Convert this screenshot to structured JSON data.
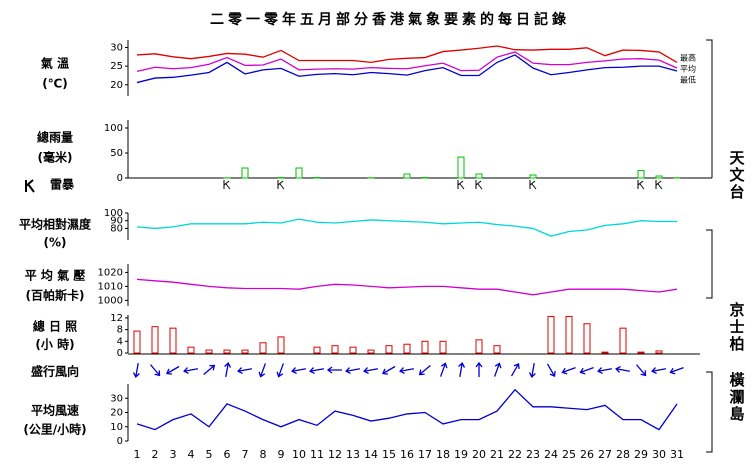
{
  "title": "二零一零年五月部分香港氣象要素的每日記錄",
  "days": [
    1,
    2,
    3,
    4,
    5,
    6,
    7,
    8,
    9,
    10,
    11,
    12,
    13,
    14,
    15,
    16,
    17,
    18,
    19,
    20,
    21,
    22,
    23,
    24,
    25,
    26,
    27,
    28,
    29,
    30,
    31
  ],
  "stations": [
    "天文台",
    "京士柏",
    "橫瀾島"
  ],
  "chart_data": [
    {
      "type": "line",
      "label": [
        "氣 溫",
        "(℃)"
      ],
      "ylim": [
        17,
        32
      ],
      "yticks": [
        20,
        25,
        30
      ],
      "series": [
        {
          "name": "最高",
          "color": "#e00000",
          "values": [
            28,
            28.3,
            27.5,
            27,
            27.6,
            28.4,
            28.2,
            27.4,
            29.2,
            26.5,
            26.5,
            26.5,
            26.5,
            26,
            26.8,
            27.1,
            27.3,
            28.9,
            29.3,
            29.8,
            30.4,
            29.4,
            29.3,
            29.5,
            29.5,
            29.9,
            27.8,
            29.3,
            29.2,
            28.8,
            26
          ]
        },
        {
          "name": "平均",
          "color": "#d000d0",
          "values": [
            23.6,
            24.7,
            24.3,
            24.6,
            25.5,
            27.3,
            25.2,
            25.3,
            26.9,
            24,
            24.2,
            24.3,
            24.2,
            24.6,
            24.4,
            24.3,
            25.1,
            25.8,
            23.8,
            23.9,
            27.4,
            28.8,
            25.8,
            25.4,
            25.4,
            26,
            26.4,
            26.9,
            27,
            26.6,
            24.5
          ]
        },
        {
          "name": "最低",
          "color": "#0000d0",
          "values": [
            20.6,
            21.8,
            22,
            22.6,
            23.3,
            26,
            22.9,
            24,
            24.4,
            22.3,
            22.8,
            23,
            22.7,
            23.3,
            23,
            22.6,
            23.8,
            24.6,
            22.5,
            22.5,
            26,
            28,
            24.5,
            22.7,
            23.3,
            24,
            24.6,
            24.7,
            25,
            25,
            23.7
          ]
        }
      ]
    },
    {
      "type": "bar",
      "label": [
        "總雨量",
        "(毫米)"
      ],
      "ylim": [
        0,
        116
      ],
      "yticks": [
        0,
        50,
        100
      ],
      "color": "#00c000",
      "values": [
        0,
        0,
        0,
        0,
        0,
        0.3,
        20,
        0,
        1,
        20,
        1,
        0,
        0,
        0.5,
        0,
        8,
        1,
        0,
        42,
        8,
        0,
        0,
        6,
        0,
        0,
        0,
        0,
        0,
        15,
        4,
        0.5
      ]
    },
    {
      "type": "event",
      "label": [
        "雷暴"
      ],
      "days": [
        6,
        9,
        19,
        20,
        23,
        29,
        30
      ]
    },
    {
      "type": "line",
      "label": [
        "平均相對濕度",
        "(%)"
      ],
      "ylim": [
        65,
        100
      ],
      "yticks": [
        80,
        90,
        100
      ],
      "color": "#00d8d8",
      "values": [
        82,
        80,
        82,
        86,
        86,
        86,
        86,
        88,
        87,
        92,
        88,
        87,
        89,
        91,
        90,
        89,
        88,
        86,
        87,
        88,
        85,
        83,
        80,
        70,
        76,
        78,
        84,
        86,
        90,
        89,
        89
      ]
    },
    {
      "type": "line",
      "label": [
        "平 均 氣 壓",
        "(百帕斯卡)"
      ],
      "ylim": [
        996,
        1026
      ],
      "yticks": [
        1000,
        1010,
        1020
      ],
      "color": "#d000d0",
      "values": [
        1015,
        1014,
        1013,
        1011.5,
        1010,
        1009,
        1008.5,
        1008.5,
        1008.5,
        1008,
        1010,
        1011.5,
        1011,
        1010,
        1009,
        1009.5,
        1010,
        1010,
        1009,
        1008,
        1008,
        1006,
        1004,
        1006,
        1008,
        1008,
        1008,
        1008,
        1007,
        1006,
        1008
      ]
    },
    {
      "type": "bar",
      "label": [
        "總 日 照",
        "(小 時)"
      ],
      "ylim": [
        0,
        13
      ],
      "yticks": [
        0,
        4,
        8,
        12
      ],
      "color": "#e00000",
      "values": [
        7.5,
        9,
        8.5,
        2,
        1,
        1,
        1,
        3.5,
        5.5,
        0,
        2,
        2.5,
        2,
        1,
        2.5,
        3,
        4,
        4,
        0,
        4.5,
        2.5,
        0,
        0,
        12.5,
        12.5,
        10,
        0.3,
        8.5,
        0.3,
        0.7,
        0
      ]
    },
    {
      "type": "arrow",
      "label": [
        "盛行風向"
      ],
      "color": "#0000d0",
      "values": [
        10,
        320,
        60,
        80,
        230,
        190,
        80,
        20,
        20,
        80,
        80,
        90,
        80,
        80,
        60,
        80,
        50,
        200,
        190,
        180,
        200,
        210,
        10,
        330,
        70,
        70,
        80,
        100,
        320,
        80,
        70
      ]
    },
    {
      "type": "line",
      "label": [
        "平均風速",
        "(公里/小時)"
      ],
      "ylim": [
        0,
        40
      ],
      "yticks": [
        0,
        10,
        20,
        30
      ],
      "color": "#0000d0",
      "values": [
        12,
        8,
        15,
        19,
        10,
        26,
        21,
        15,
        10,
        15,
        11,
        21,
        18,
        14,
        16,
        19,
        20,
        12,
        15,
        15,
        21,
        36,
        24,
        24,
        23,
        22,
        25,
        15,
        15,
        8,
        26
      ]
    }
  ]
}
